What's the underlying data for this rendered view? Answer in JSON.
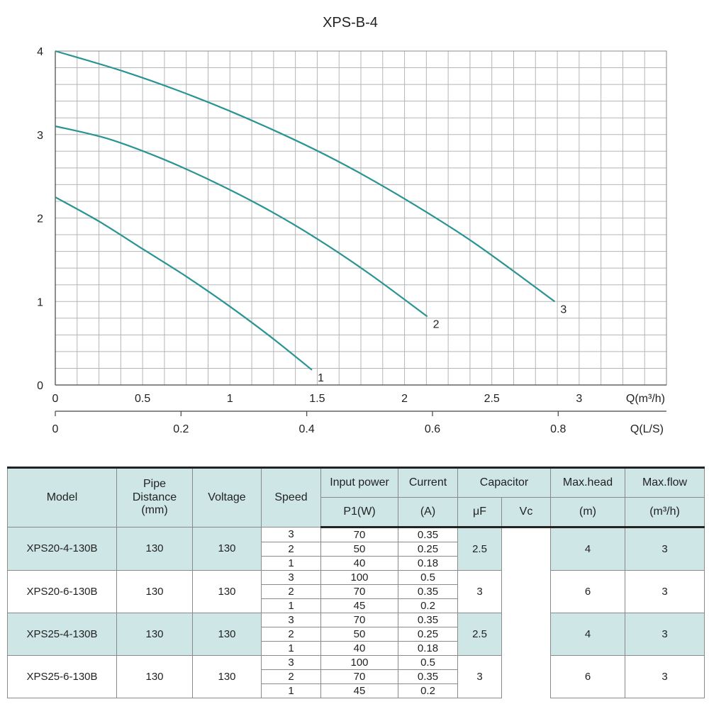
{
  "chart_data": {
    "type": "line",
    "title": "XPS-B-4",
    "xlabel": "Q(m³/h)",
    "x2label": "Q(L/S)",
    "ylabel": "",
    "xlim": [
      0,
      3.5
    ],
    "ylim": [
      0,
      4
    ],
    "x_ticks": [
      "0",
      "0.5",
      "1",
      "1.5",
      "2",
      "2.5",
      "3"
    ],
    "x2_ticks": [
      "0",
      "0.2",
      "0.4",
      "0.6",
      "0.8"
    ],
    "x2_tick_values": [
      0,
      0.2,
      0.4,
      0.6,
      0.8
    ],
    "y_ticks": [
      "0",
      "1",
      "2",
      "3",
      "4"
    ],
    "grid": true,
    "line_color": "#2a9494",
    "series": [
      {
        "name": "1",
        "x": [
          0,
          0.25,
          0.5,
          0.75,
          1.0,
          1.25,
          1.47
        ],
        "y": [
          2.25,
          1.96,
          1.63,
          1.3,
          0.94,
          0.55,
          0.18
        ]
      },
      {
        "name": "2",
        "x": [
          0,
          0.3,
          0.6,
          0.9,
          1.2,
          1.5,
          1.8,
          2.13
        ],
        "y": [
          3.1,
          2.95,
          2.72,
          2.44,
          2.12,
          1.75,
          1.33,
          0.82
        ]
      },
      {
        "name": "3",
        "x": [
          0,
          0.4,
          0.8,
          1.2,
          1.6,
          2.0,
          2.4,
          2.86
        ],
        "y": [
          4.0,
          3.75,
          3.45,
          3.1,
          2.7,
          2.23,
          1.7,
          1.0
        ]
      }
    ]
  },
  "table": {
    "header": {
      "model": "Model",
      "pipe_line1": "Pipe",
      "pipe_line2": "Distance",
      "pipe_line3": "(mm)",
      "voltage": "Voltage",
      "speed": "Speed",
      "input_power": "Input power",
      "p1": "P1(W)",
      "current": "Current",
      "current_unit": "(A)",
      "capacitor": "Capacitor",
      "uf": "μF",
      "vc": "Vc",
      "max_head": "Max.head",
      "max_head_unit": "(m)",
      "max_flow": "Max.flow",
      "max_flow_unit": "(m³/h)"
    },
    "rows": [
      {
        "model": "XPS20-4-130B",
        "pipe": "130",
        "voltage": "130",
        "uf": "2.5",
        "vc": "",
        "head": "4",
        "flow": "3",
        "shaded": true,
        "speeds": [
          {
            "speed": "3",
            "p1": "70",
            "current": "0.35"
          },
          {
            "speed": "2",
            "p1": "50",
            "current": "0.25"
          },
          {
            "speed": "1",
            "p1": "40",
            "current": "0.18"
          }
        ]
      },
      {
        "model": "XPS20-6-130B",
        "pipe": "130",
        "voltage": "130",
        "uf": "3",
        "vc": "",
        "head": "6",
        "flow": "3",
        "shaded": false,
        "speeds": [
          {
            "speed": "3",
            "p1": "100",
            "current": "0.5"
          },
          {
            "speed": "2",
            "p1": "70",
            "current": "0.35"
          },
          {
            "speed": "1",
            "p1": "45",
            "current": "0.2"
          }
        ]
      },
      {
        "model": "XPS25-4-130B",
        "pipe": "130",
        "voltage": "130",
        "uf": "2.5",
        "vc": "",
        "head": "4",
        "flow": "3",
        "shaded": true,
        "speeds": [
          {
            "speed": "3",
            "p1": "70",
            "current": "0.35"
          },
          {
            "speed": "2",
            "p1": "50",
            "current": "0.25"
          },
          {
            "speed": "1",
            "p1": "40",
            "current": "0.18"
          }
        ]
      },
      {
        "model": "XPS25-6-130B",
        "pipe": "130",
        "voltage": "130",
        "uf": "3",
        "vc": "",
        "head": "6",
        "flow": "3",
        "shaded": false,
        "speeds": [
          {
            "speed": "3",
            "p1": "100",
            "current": "0.5"
          },
          {
            "speed": "2",
            "p1": "70",
            "current": "0.35"
          },
          {
            "speed": "1",
            "p1": "45",
            "current": "0.2"
          }
        ]
      }
    ]
  }
}
